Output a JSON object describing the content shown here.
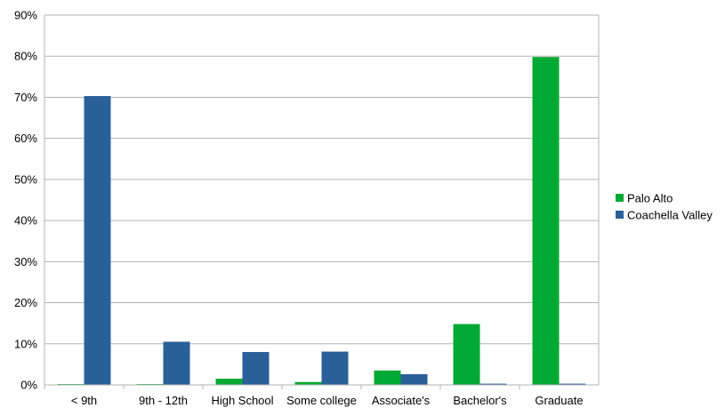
{
  "chart_data": {
    "type": "bar",
    "categories": [
      "< 9th",
      "9th - 12th",
      "High School",
      "Some college",
      "Associate's",
      "Bachelor's",
      "Graduate"
    ],
    "series": [
      {
        "name": "Palo Alto",
        "color": "#00a933",
        "values": [
          0.2,
          0.2,
          1.5,
          0.7,
          3.5,
          14.8,
          79.8
        ]
      },
      {
        "name": "Coachella Valley",
        "color": "#2a6099",
        "values": [
          70.3,
          10.5,
          8.0,
          8.1,
          2.6,
          0.3,
          0.3
        ]
      }
    ],
    "y_ticks": [
      "0%",
      "10%",
      "20%",
      "30%",
      "40%",
      "50%",
      "60%",
      "70%",
      "80%",
      "90%"
    ],
    "ylim": [
      0,
      90
    ],
    "title": "",
    "xlabel": "",
    "ylabel": "",
    "grid": true,
    "legend_position": "right"
  }
}
